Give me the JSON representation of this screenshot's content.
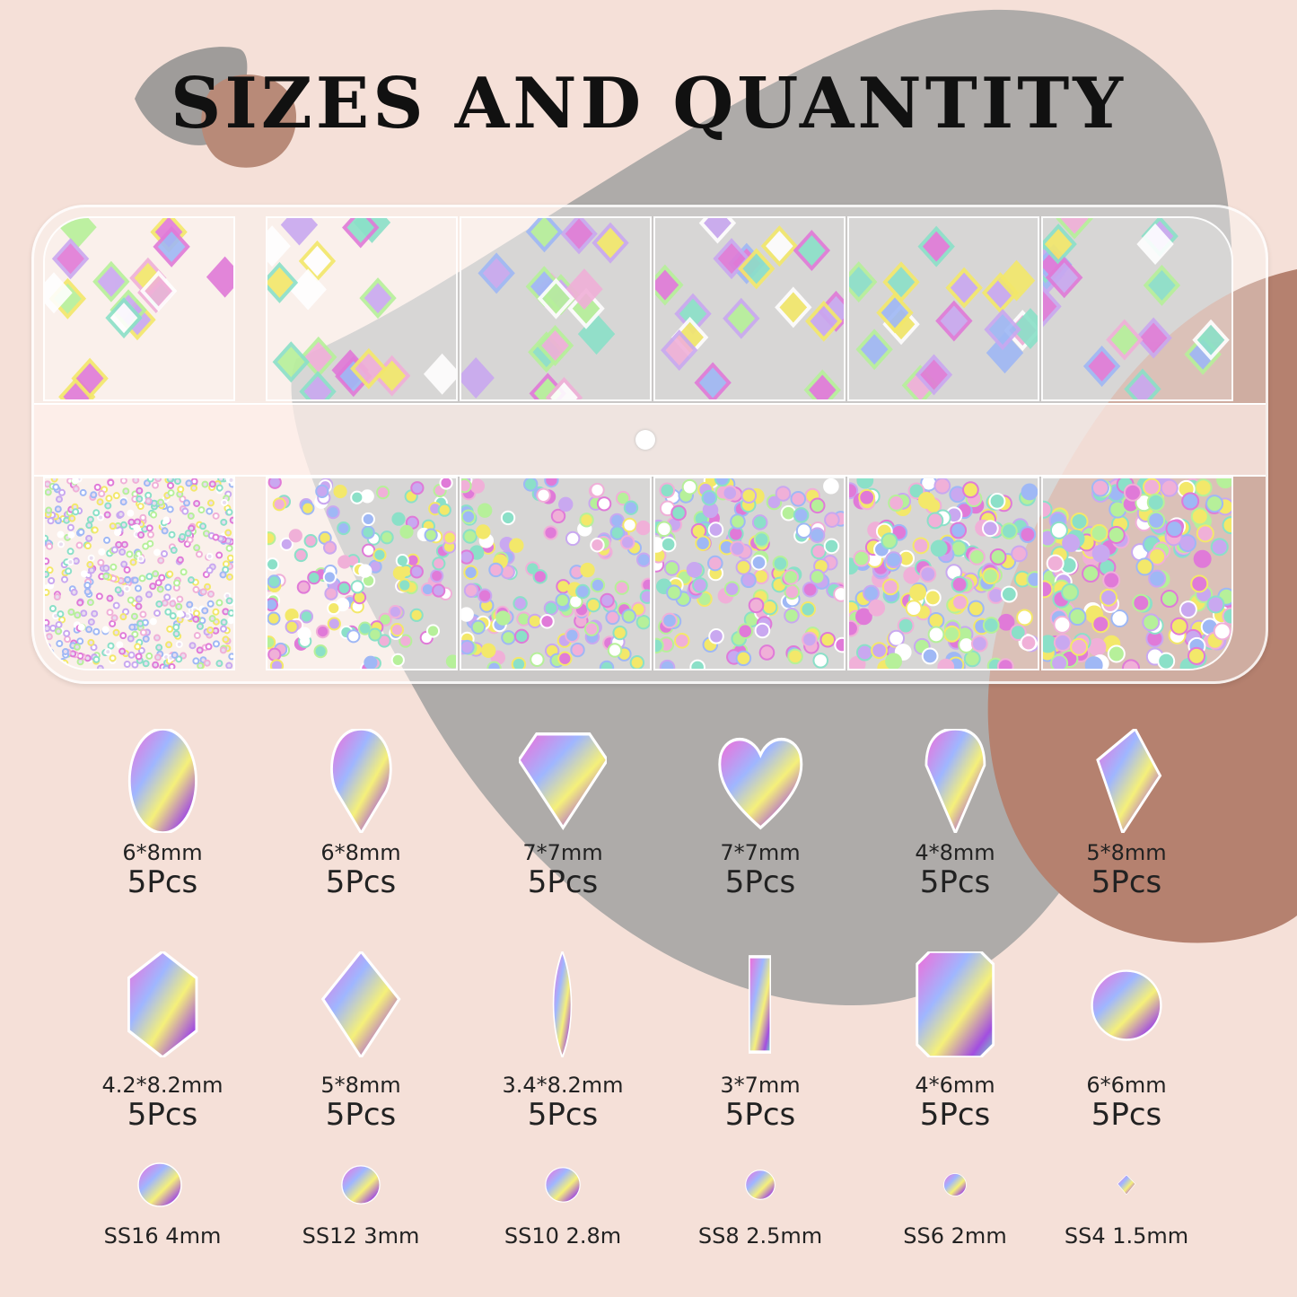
{
  "title": "SIZES AND QUANTITY",
  "colors": {
    "background": "#f5e0d8",
    "gray_blob": "#aeaba9",
    "brown_blob": "#b5816f",
    "text": "#222222"
  },
  "rows": [
    [
      {
        "shape": "oval",
        "size": "6*8mm",
        "qty": "5Pcs"
      },
      {
        "shape": "teardrop",
        "size": "6*8mm",
        "qty": "5Pcs"
      },
      {
        "shape": "diamond-kite",
        "size": "7*7mm",
        "qty": "5Pcs"
      },
      {
        "shape": "heart",
        "size": "7*7mm",
        "qty": "5Pcs"
      },
      {
        "shape": "drop-point",
        "size": "4*8mm",
        "qty": "5Pcs"
      },
      {
        "shape": "kite",
        "size": "5*8mm",
        "qty": "5Pcs"
      }
    ],
    [
      {
        "shape": "hexagon",
        "size": "4.2*8.2mm",
        "qty": "5Pcs"
      },
      {
        "shape": "rhombus",
        "size": "5*8mm",
        "qty": "5Pcs"
      },
      {
        "shape": "marquise",
        "size": "3.4*8.2mm",
        "qty": "5Pcs"
      },
      {
        "shape": "baguette",
        "size": "3*7mm",
        "qty": "5Pcs"
      },
      {
        "shape": "octagon",
        "size": "4*6mm",
        "qty": "5Pcs"
      },
      {
        "shape": "round",
        "size": "6*6mm",
        "qty": "5Pcs"
      }
    ]
  ],
  "round_sizes": [
    "SS16 4mm",
    "SS12 3mm",
    "SS10 2.8m",
    "SS8 2.5mm",
    "SS6 2mm",
    "SS4 1.5mm"
  ]
}
